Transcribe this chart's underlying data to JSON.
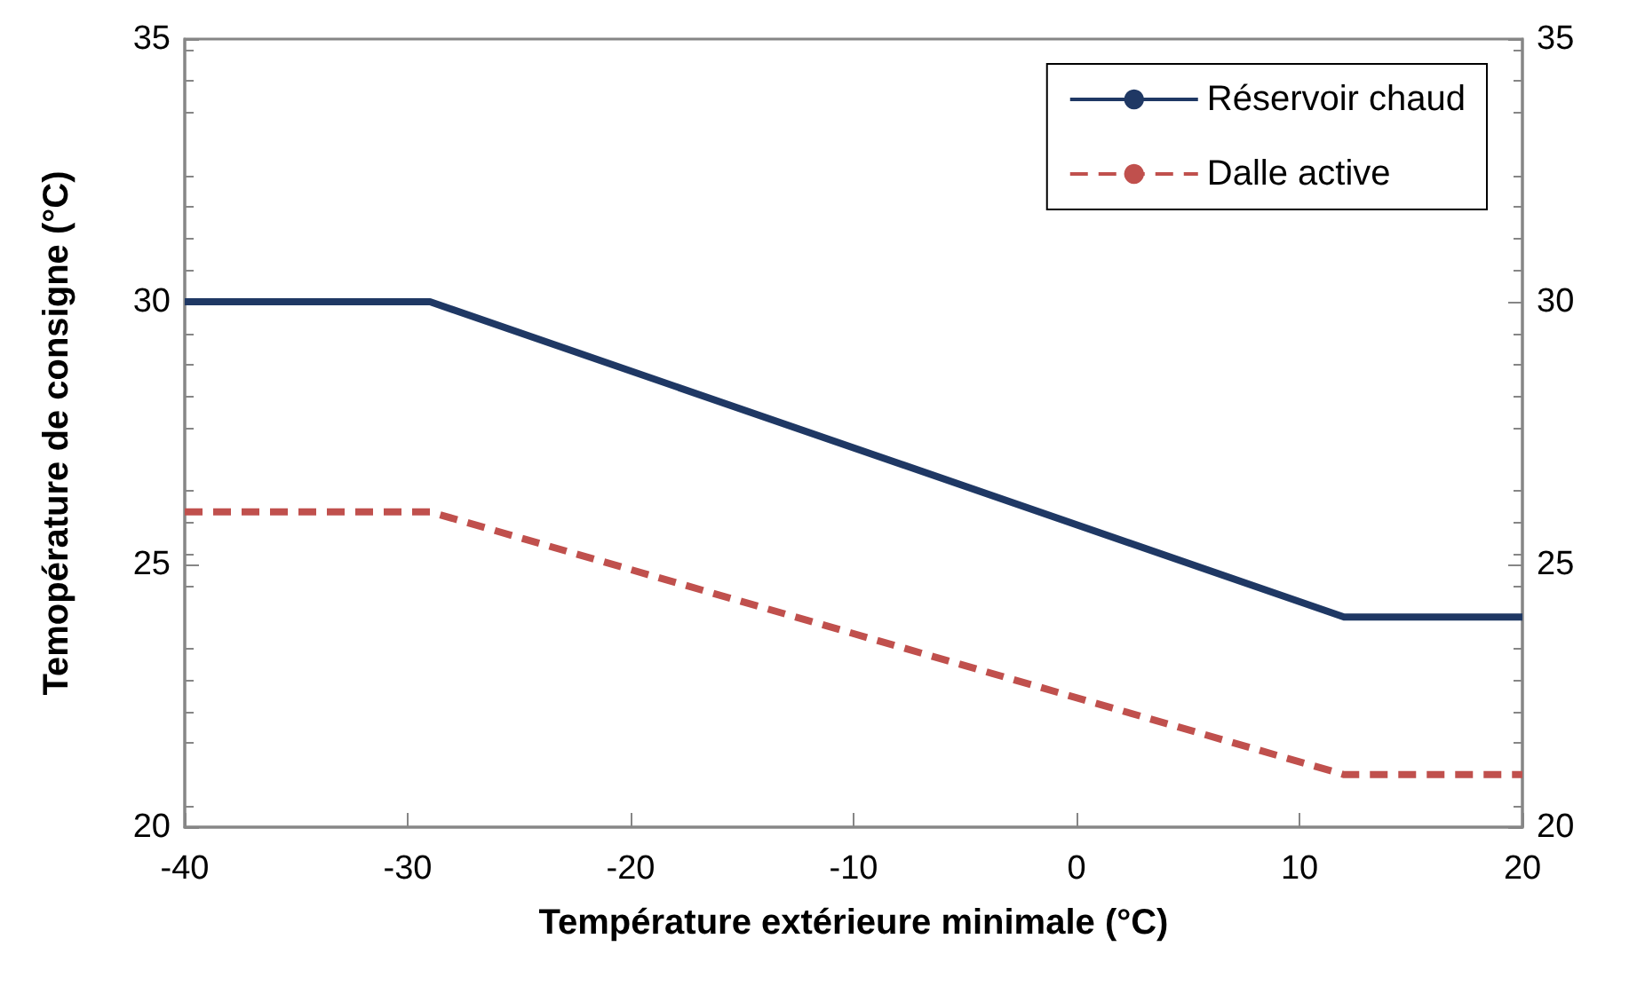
{
  "chart_data": {
    "type": "line",
    "xlabel": "Température extérieure minimale (°C)",
    "ylabel": "Temopérature de consigne (°C)",
    "xlim": [
      -40,
      20
    ],
    "xticks": [
      -40,
      -30,
      -20,
      -10,
      0,
      10,
      20
    ],
    "ylim": [
      20,
      35
    ],
    "yticks": [
      20,
      25,
      30,
      35
    ],
    "y2lim": [
      20,
      35
    ],
    "y2ticks": [
      20,
      25,
      30,
      35
    ],
    "grid": false,
    "legend": "top right",
    "marker": "none",
    "series": [
      {
        "name": "Réservoir chaud",
        "color": "#1f3864",
        "line_style": "solid",
        "x": [
          -40,
          -29,
          12,
          20
        ],
        "values": [
          30,
          30,
          24,
          24
        ]
      },
      {
        "name": "Dalle active",
        "color": "#c0504d",
        "line_style": "dashed",
        "x": [
          -40,
          -29,
          12,
          20
        ],
        "values": [
          26,
          26,
          21,
          21
        ]
      }
    ]
  }
}
